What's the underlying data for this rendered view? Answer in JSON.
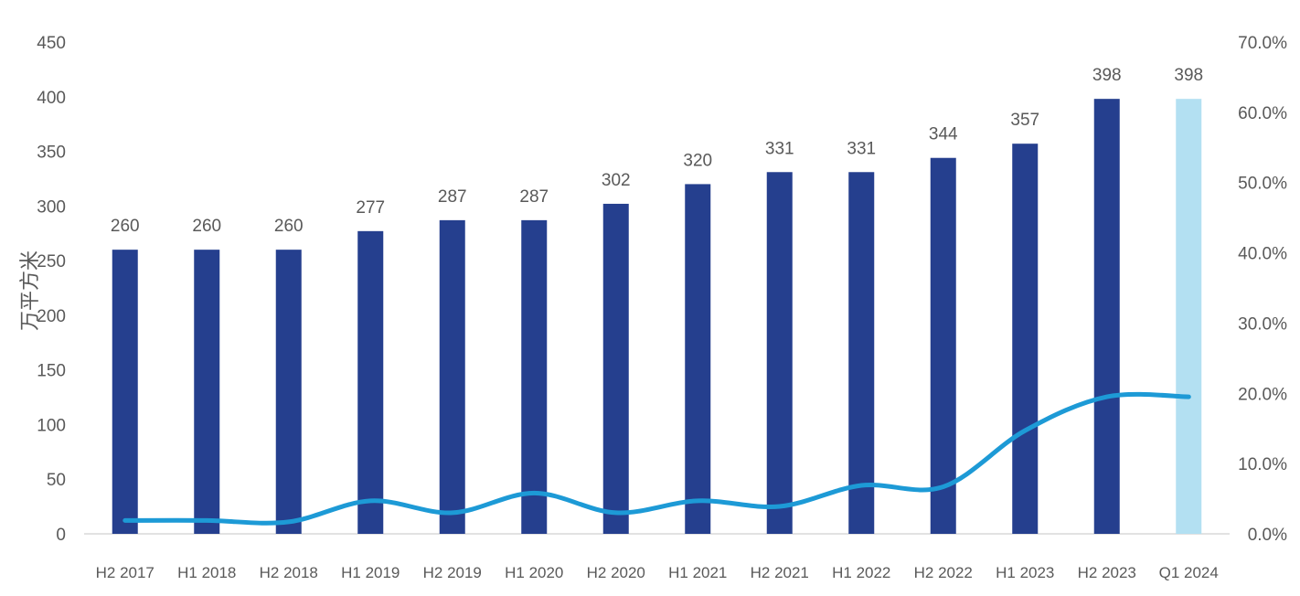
{
  "chart_data": {
    "type": "bar",
    "categories": [
      "H2 2017",
      "H1 2018",
      "H2 2018",
      "H1 2019",
      "H2 2019",
      "H1 2020",
      "H2 2020",
      "H1 2021",
      "H2 2021",
      "H1 2022",
      "H2 2022",
      "H1 2023",
      "H2 2023",
      "Q1 2024"
    ],
    "series": [
      {
        "type": "bar",
        "axis": "left",
        "values": [
          260,
          260,
          260,
          277,
          287,
          287,
          302,
          320,
          331,
          331,
          344,
          357,
          398,
          398
        ],
        "color": "#253f8e",
        "last_point_color": "#b3e0f2",
        "data_labels": [
          "260",
          "260",
          "260",
          "277",
          "287",
          "287",
          "302",
          "320",
          "331",
          "331",
          "344",
          "357",
          "398",
          "398"
        ]
      },
      {
        "type": "line",
        "axis": "right",
        "values": [
          0.019,
          0.019,
          0.017,
          0.047,
          0.03,
          0.058,
          0.03,
          0.047,
          0.039,
          0.069,
          0.067,
          0.147,
          0.195,
          0.195
        ],
        "color": "#1d9ad6",
        "smooth": true
      }
    ],
    "ylabel": "万平方米",
    "ylim": [
      0,
      450
    ],
    "yticks": [
      "0",
      "50",
      "100",
      "150",
      "200",
      "250",
      "300",
      "350",
      "400",
      "450"
    ],
    "y2lim": [
      0,
      0.7
    ],
    "y2ticks": [
      "0.0%",
      "10.0%",
      "20.0%",
      "30.0%",
      "40.0%",
      "50.0%",
      "60.0%",
      "70.0%"
    ],
    "grid": false,
    "legend": "none"
  }
}
